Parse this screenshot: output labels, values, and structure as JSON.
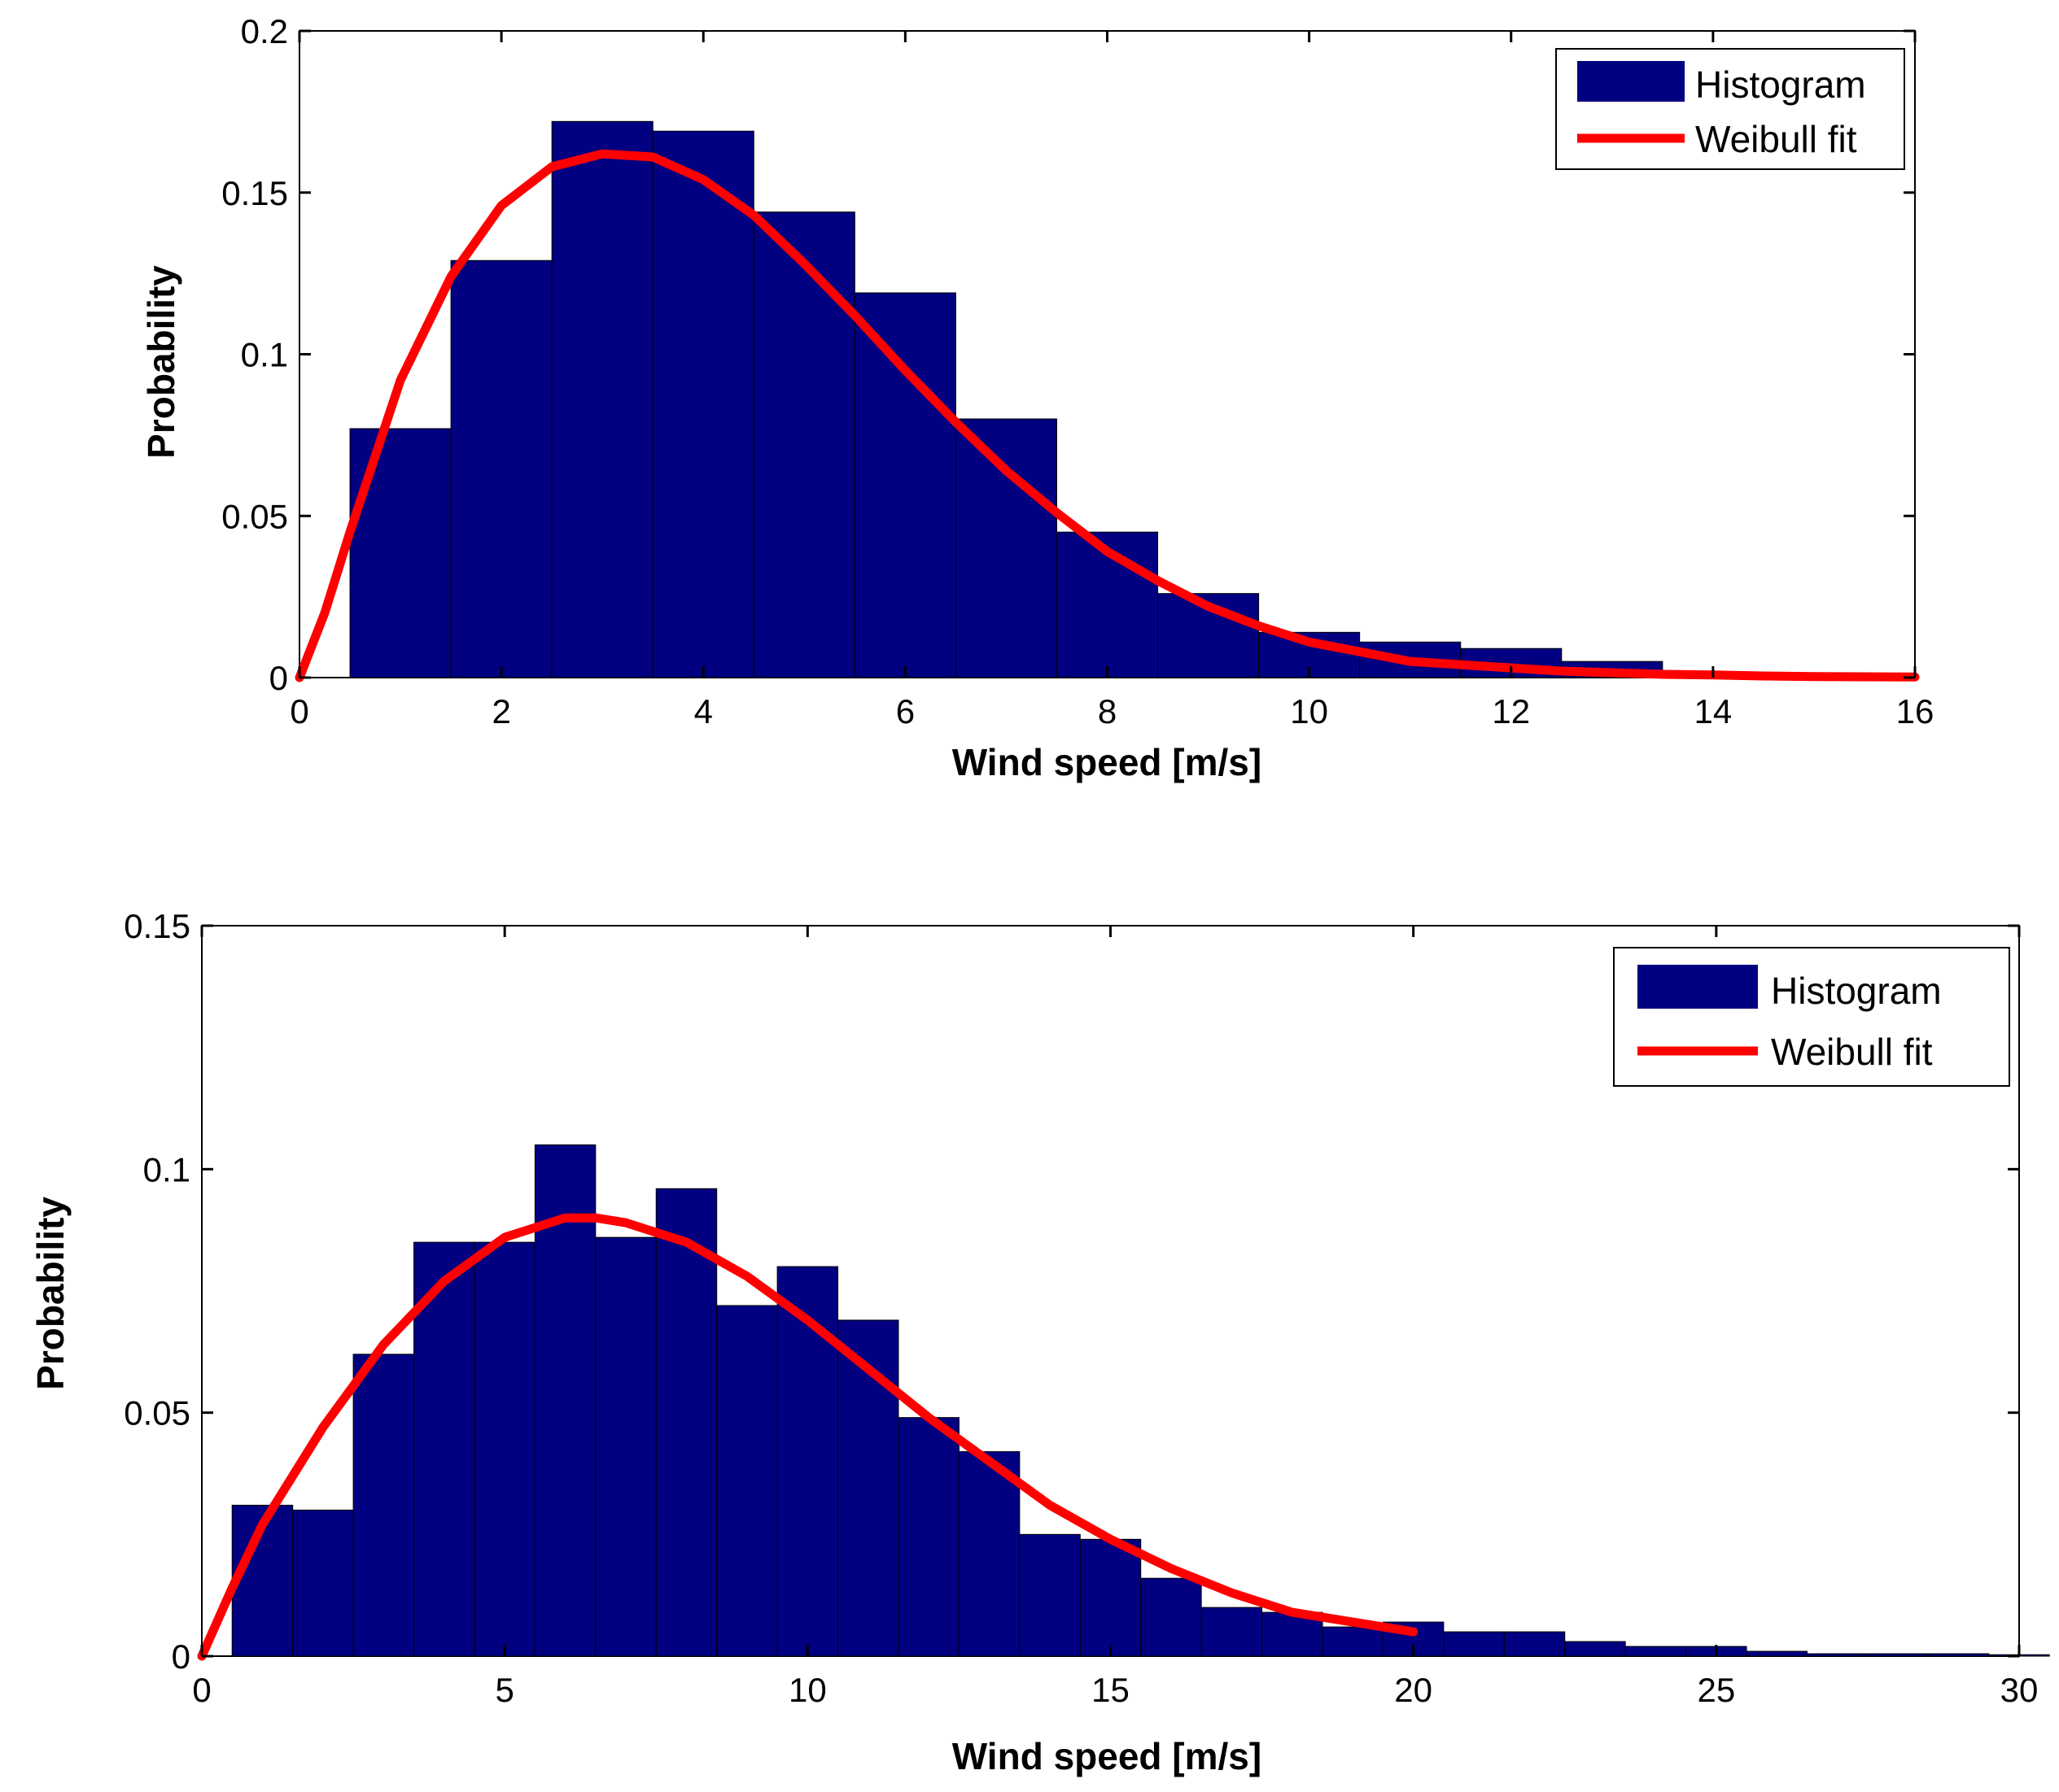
{
  "colors": {
    "histogram": "#000080",
    "weibull": "#ff0000"
  },
  "chart_data": [
    {
      "type": "bar",
      "title": "",
      "xlabel": "Wind speed [m/s]",
      "ylabel": "Probability",
      "xlim": [
        0,
        16
      ],
      "ylim": [
        0,
        0.2
      ],
      "xticks": [
        0,
        2,
        4,
        6,
        8,
        10,
        12,
        14,
        16
      ],
      "xtick_labels": [
        "0",
        "2",
        "4",
        "6",
        "8",
        "10",
        "12",
        "14",
        "16"
      ],
      "yticks": [
        0,
        0.05,
        0.1,
        0.15,
        0.2
      ],
      "ytick_labels": [
        "0",
        "0.05",
        "0.1",
        "0.15",
        "0.2"
      ],
      "legend": {
        "position": "top-right",
        "entries": [
          "Histogram",
          "Weibull fit"
        ]
      },
      "histogram": {
        "name": "Histogram",
        "bin_width": 1,
        "centers": [
          1,
          2,
          3,
          4,
          5,
          6,
          7,
          8,
          9,
          10,
          11,
          12,
          13
        ],
        "values": [
          0.077,
          0.129,
          0.172,
          0.169,
          0.144,
          0.119,
          0.08,
          0.045,
          0.026,
          0.014,
          0.011,
          0.009,
          0.005
        ]
      },
      "weibull": {
        "name": "Weibull fit",
        "x": [
          0,
          0.25,
          0.5,
          1,
          1.5,
          2,
          2.5,
          3,
          3.5,
          4,
          4.5,
          5,
          5.5,
          6,
          6.5,
          7,
          7.5,
          8,
          8.5,
          9,
          9.5,
          10,
          10.5,
          11,
          11.5,
          12,
          12.5,
          13,
          13.5,
          14,
          14.5,
          15,
          16
        ],
        "y": [
          0,
          0.02,
          0.045,
          0.092,
          0.124,
          0.146,
          0.158,
          0.162,
          0.161,
          0.154,
          0.143,
          0.128,
          0.112,
          0.095,
          0.079,
          0.064,
          0.051,
          0.039,
          0.03,
          0.022,
          0.016,
          0.011,
          0.008,
          0.005,
          0.004,
          0.003,
          0.002,
          0.0015,
          0.001,
          0.0008,
          0.0005,
          0.0003,
          0.0002
        ]
      }
    },
    {
      "type": "bar",
      "title": "",
      "xlabel": "Wind speed [m/s]",
      "ylabel": "Probability",
      "xlim": [
        0,
        30
      ],
      "ylim": [
        0,
        0.15
      ],
      "xticks": [
        0,
        5,
        10,
        15,
        20,
        25,
        30
      ],
      "xtick_labels": [
        "0",
        "5",
        "10",
        "15",
        "20",
        "25",
        "30"
      ],
      "yticks": [
        0,
        0.05,
        0.1,
        0.15
      ],
      "ytick_labels": [
        "0",
        "0.05",
        "0.1",
        "0.15"
      ],
      "legend": {
        "position": "top-right",
        "entries": [
          "Histogram",
          "Weibull fit"
        ]
      },
      "histogram": {
        "name": "Histogram",
        "bin_width": 1,
        "centers": [
          1,
          2,
          3,
          4,
          5,
          6,
          7,
          8,
          9,
          10,
          11,
          12,
          13,
          14,
          15,
          16,
          17,
          18,
          19,
          20,
          21,
          22,
          23,
          24,
          25,
          26,
          27,
          28,
          29,
          30
        ],
        "values": [
          0.031,
          0.03,
          0.062,
          0.085,
          0.085,
          0.105,
          0.086,
          0.096,
          0.072,
          0.08,
          0.069,
          0.049,
          0.042,
          0.025,
          0.024,
          0.016,
          0.01,
          0.009,
          0.006,
          0.007,
          0.005,
          0.005,
          0.003,
          0.002,
          0.002,
          0.001,
          0.0005,
          0.0005,
          0.0005,
          0.0003
        ]
      },
      "weibull": {
        "name": "Weibull fit",
        "x": [
          0,
          0.5,
          1,
          2,
          3,
          4,
          5,
          6,
          6.5,
          7,
          8,
          9,
          10,
          11,
          12,
          13,
          14,
          15,
          16,
          17,
          18,
          19,
          20
        ],
        "y": [
          0,
          0.014,
          0.027,
          0.047,
          0.064,
          0.077,
          0.086,
          0.09,
          0.09,
          0.089,
          0.085,
          0.078,
          0.069,
          0.059,
          0.049,
          0.04,
          0.031,
          0.024,
          0.018,
          0.013,
          0.009,
          0.007,
          0.005
        ]
      }
    }
  ]
}
